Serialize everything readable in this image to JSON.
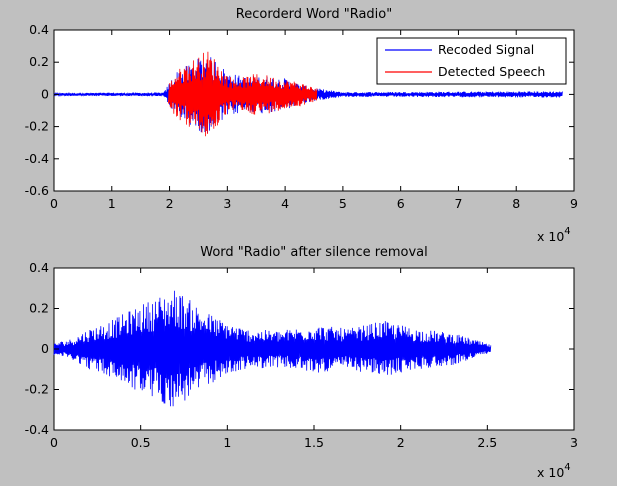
{
  "window": {
    "background": "#c0c0c0"
  },
  "chart_data": [
    {
      "type": "line",
      "title": "Recorderd Word \"Radio\"",
      "xlabel": "",
      "ylabel": "",
      "x_multiplier": "x 10",
      "x_multiplier_exp": "4",
      "xlim": [
        0,
        9
      ],
      "ylim": [
        -0.6,
        0.4
      ],
      "xticks": [
        0,
        1,
        2,
        3,
        4,
        5,
        6,
        7,
        8,
        9
      ],
      "xtick_labels": [
        "0",
        "1",
        "2",
        "3",
        "4",
        "5",
        "6",
        "7",
        "8",
        "9"
      ],
      "yticks": [
        -0.6,
        -0.4,
        -0.2,
        0,
        0.2,
        0.4
      ],
      "ytick_labels": [
        "-0.6",
        "-0.4",
        "-0.2",
        "0",
        "0.2",
        "0.4"
      ],
      "grid": false,
      "legend_position": "top-right",
      "series": [
        {
          "name": "Recoded Signal",
          "color": "#0000ff",
          "x_range": [
            0,
            8.8
          ],
          "envelope": [
            [
              0,
              0.005
            ],
            [
              0.2,
              0.01
            ],
            [
              1.9,
              0.012
            ],
            [
              2.1,
              0.14
            ],
            [
              2.4,
              0.2
            ],
            [
              2.6,
              0.25
            ],
            [
              2.8,
              0.22
            ],
            [
              3.0,
              0.14
            ],
            [
              3.3,
              0.11
            ],
            [
              3.6,
              0.12
            ],
            [
              4.0,
              0.1
            ],
            [
              4.3,
              0.06
            ],
            [
              4.6,
              0.035
            ],
            [
              5.0,
              0.015
            ],
            [
              8.8,
              0.02
            ]
          ]
        },
        {
          "name": "Detected Speech",
          "color": "#ff0000",
          "x_range": [
            1.98,
            4.55
          ],
          "envelope": [
            [
              1.98,
              0.06
            ],
            [
              2.1,
              0.14
            ],
            [
              2.3,
              0.2
            ],
            [
              2.5,
              0.24
            ],
            [
              2.65,
              0.28
            ],
            [
              2.8,
              0.22
            ],
            [
              2.95,
              0.14
            ],
            [
              3.1,
              0.1
            ],
            [
              3.3,
              0.11
            ],
            [
              3.5,
              0.13
            ],
            [
              3.7,
              0.12
            ],
            [
              3.9,
              0.1
            ],
            [
              4.1,
              0.09
            ],
            [
              4.3,
              0.07
            ],
            [
              4.55,
              0.04
            ]
          ]
        }
      ]
    },
    {
      "type": "line",
      "title": "Word \"Radio\" after silence removal",
      "xlabel": "",
      "ylabel": "",
      "x_multiplier": "x 10",
      "x_multiplier_exp": "4",
      "xlim": [
        0,
        3
      ],
      "ylim": [
        -0.4,
        0.4
      ],
      "xticks": [
        0,
        0.5,
        1,
        1.5,
        2,
        2.5,
        3
      ],
      "xtick_labels": [
        "0",
        "0.5",
        "1",
        "1.5",
        "2",
        "2.5",
        "3"
      ],
      "yticks": [
        -0.4,
        -0.2,
        0,
        0.2,
        0.4
      ],
      "ytick_labels": [
        "-0.4",
        "-0.2",
        "0",
        "0.2",
        "0.4"
      ],
      "grid": false,
      "series": [
        {
          "color": "#0000ff",
          "x_range": [
            0,
            2.52
          ],
          "envelope": [
            [
              0,
              0.03
            ],
            [
              0.1,
              0.05
            ],
            [
              0.2,
              0.1
            ],
            [
              0.35,
              0.15
            ],
            [
              0.5,
              0.22
            ],
            [
              0.7,
              0.3
            ],
            [
              0.85,
              0.2
            ],
            [
              0.95,
              0.15
            ],
            [
              1.1,
              0.1
            ],
            [
              1.3,
              0.09
            ],
            [
              1.5,
              0.12
            ],
            [
              1.7,
              0.1
            ],
            [
              1.9,
              0.14
            ],
            [
              2.1,
              0.1
            ],
            [
              2.3,
              0.08
            ],
            [
              2.45,
              0.04
            ],
            [
              2.52,
              0.02
            ]
          ]
        }
      ]
    }
  ]
}
